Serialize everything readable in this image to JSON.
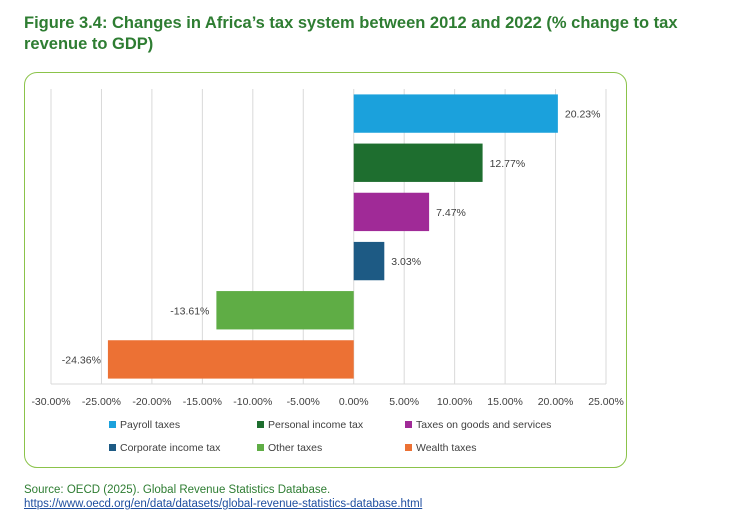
{
  "figure": {
    "title": "Figure 3.4: Changes in Africa’s tax system between 2012 and 2022  (% change to tax revenue to GDP)",
    "source_line": "Source: OECD (2025). Global Revenue Statistics Database.",
    "source_link": "https://www.oecd.org/en/data/datasets/global-revenue-statistics-database.html"
  },
  "chart_data": {
    "type": "bar",
    "orientation": "horizontal",
    "title": "",
    "xlabel": "",
    "ylabel": "",
    "xlim": [
      -30,
      25
    ],
    "x_ticks": [
      -30,
      -25,
      -20,
      -15,
      -10,
      -5,
      0,
      5,
      10,
      15,
      20,
      25
    ],
    "x_tick_labels": [
      "-30.00%",
      "-25.00%",
      "-20.00%",
      "-15.00%",
      "-10.00%",
      "-5.00%",
      "0.00%",
      "5.00%",
      "10.00%",
      "15.00%",
      "20.00%",
      "25.00%"
    ],
    "grid": true,
    "legend_position": "bottom",
    "series": [
      {
        "name": "Payroll taxes",
        "value": 20.23,
        "label": "20.23%",
        "color": "#1ba1dc"
      },
      {
        "name": "Personal income tax",
        "value": 12.77,
        "label": "12.77%",
        "color": "#1e6e2f"
      },
      {
        "name": "Taxes on goods and services",
        "value": 7.47,
        "label": "7.47%",
        "color": "#a02a97"
      },
      {
        "name": "Corporate income tax",
        "value": 3.03,
        "label": "3.03%",
        "color": "#1d5a84"
      },
      {
        "name": "Other taxes",
        "value": -13.61,
        "label": "-13.61%",
        "color": "#5fad45"
      },
      {
        "name": "Wealth taxes",
        "value": -24.36,
        "label": "-24.36%",
        "color": "#ec7134"
      }
    ]
  }
}
